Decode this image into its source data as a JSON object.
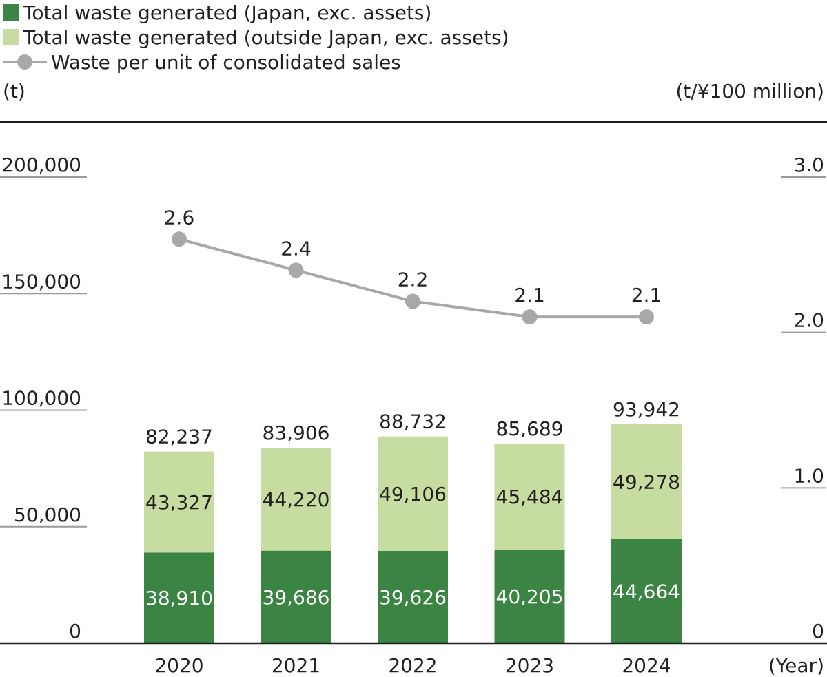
{
  "legend": {
    "japan": "Total waste generated (Japan, exc. assets)",
    "outside": "Total waste generated (outside Japan, exc. assets)",
    "line": "Waste per unit of consolidated sales"
  },
  "colors": {
    "japan": "#3b8443",
    "outside": "#c7dca1",
    "line": "#a7a8a9",
    "axis": "#231f20",
    "gridTick": "#9a9a9a"
  },
  "chart_data": {
    "type": "bar",
    "stacked": true,
    "categories": [
      "2020",
      "2021",
      "2022",
      "2023",
      "2024"
    ],
    "series": [
      {
        "name": "Total waste generated (Japan, exc. assets)",
        "type": "bar",
        "axis": "left",
        "values": [
          38910,
          39686,
          39626,
          40205,
          44664
        ]
      },
      {
        "name": "Total waste generated (outside Japan, exc. assets)",
        "type": "bar",
        "axis": "left",
        "values": [
          43327,
          44220,
          49106,
          45484,
          49278
        ]
      },
      {
        "name": "Waste per unit of consolidated sales",
        "type": "line",
        "axis": "right",
        "values": [
          2.6,
          2.4,
          2.2,
          2.1,
          2.1
        ]
      }
    ],
    "totals": [
      82237,
      83906,
      88732,
      85689,
      93942
    ],
    "total_labels": [
      "82,237",
      "83,906",
      "88,732",
      "85,689",
      "93,942"
    ],
    "japan_labels": [
      "38,910",
      "39,686",
      "39,626",
      "40,205",
      "44,664"
    ],
    "outside_labels": [
      "43,327",
      "44,220",
      "49,106",
      "45,484",
      "49,278"
    ],
    "line_labels": [
      "2.6",
      "2.4",
      "2.2",
      "2.1",
      "2.1"
    ],
    "left_axis": {
      "unit": "(t)",
      "ylim": [
        0,
        200000
      ],
      "ticks": [
        0,
        50000,
        100000,
        150000,
        200000
      ],
      "tick_labels": [
        "0",
        "50,000",
        "100,000",
        "150,000",
        "200,000"
      ]
    },
    "right_axis": {
      "unit": "(t/¥100 million)",
      "ylim": [
        0,
        3.0
      ],
      "ticks": [
        0,
        1.0,
        2.0,
        3.0
      ],
      "tick_labels": [
        "0",
        "1.0",
        "2.0",
        "3.0"
      ]
    },
    "xlabel": "(Year)",
    "legend_position": "top-left"
  }
}
